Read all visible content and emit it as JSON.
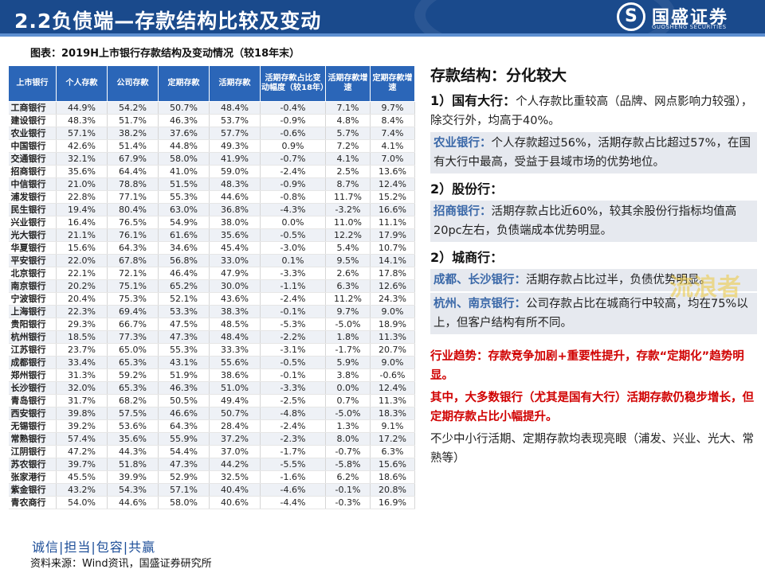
{
  "header": {
    "title": "2.2负债端—存款结构比较及变动",
    "logo_cn": "国盛证券",
    "logo_en": "GUOSHENG SECURITIES",
    "logo_mark": "S",
    "bg_color": "#1a4a8c"
  },
  "caption": "图表：2019H上市银行存款结构及变动情况（较18年末）",
  "table": {
    "columns": [
      "上市银行",
      "个人存款",
      "公司存款",
      "定期存款",
      "活期存款",
      "活期存款占比变动幅度（较18年）",
      "活期存款增速",
      "定期存款增速"
    ],
    "rows": [
      [
        "工商银行",
        "44.9%",
        "54.2%",
        "50.7%",
        "48.4%",
        "-0.4%",
        "7.1%",
        "9.7%"
      ],
      [
        "建设银行",
        "48.3%",
        "51.7%",
        "46.3%",
        "53.7%",
        "-0.9%",
        "4.8%",
        "8.4%"
      ],
      [
        "农业银行",
        "57.1%",
        "38.2%",
        "37.6%",
        "57.7%",
        "-0.6%",
        "5.7%",
        "7.4%"
      ],
      [
        "中国银行",
        "42.6%",
        "51.4%",
        "44.8%",
        "49.3%",
        "0.9%",
        "7.2%",
        "4.1%"
      ],
      [
        "交通银行",
        "32.1%",
        "67.9%",
        "58.0%",
        "41.9%",
        "-0.7%",
        "4.1%",
        "7.0%"
      ],
      [
        "招商银行",
        "35.6%",
        "64.4%",
        "41.0%",
        "59.0%",
        "-2.4%",
        "2.5%",
        "13.6%"
      ],
      [
        "中信银行",
        "21.0%",
        "78.8%",
        "51.5%",
        "48.3%",
        "-0.9%",
        "8.7%",
        "12.4%"
      ],
      [
        "浦发银行",
        "22.8%",
        "77.1%",
        "55.3%",
        "44.6%",
        "-0.8%",
        "11.7%",
        "15.2%"
      ],
      [
        "民生银行",
        "19.4%",
        "80.4%",
        "63.0%",
        "36.8%",
        "-4.3%",
        "-3.2%",
        "16.6%"
      ],
      [
        "兴业银行",
        "16.4%",
        "76.5%",
        "54.9%",
        "38.0%",
        "0.0%",
        "11.0%",
        "11.1%"
      ],
      [
        "光大银行",
        "21.1%",
        "76.1%",
        "61.6%",
        "35.6%",
        "-0.5%",
        "12.2%",
        "17.9%"
      ],
      [
        "华夏银行",
        "15.6%",
        "64.3%",
        "34.6%",
        "45.4%",
        "-3.0%",
        "5.4%",
        "10.7%"
      ],
      [
        "平安银行",
        "22.0%",
        "67.8%",
        "56.8%",
        "33.0%",
        "0.1%",
        "9.5%",
        "14.1%"
      ],
      [
        "北京银行",
        "22.1%",
        "72.1%",
        "46.4%",
        "47.9%",
        "-3.3%",
        "2.6%",
        "17.8%"
      ],
      [
        "南京银行",
        "20.2%",
        "75.1%",
        "65.2%",
        "30.0%",
        "-1.1%",
        "6.3%",
        "12.6%"
      ],
      [
        "宁波银行",
        "20.4%",
        "75.3%",
        "52.1%",
        "43.6%",
        "-2.4%",
        "11.2%",
        "24.3%"
      ],
      [
        "上海银行",
        "22.3%",
        "69.4%",
        "53.3%",
        "38.3%",
        "-0.1%",
        "9.7%",
        "9.0%"
      ],
      [
        "贵阳银行",
        "29.3%",
        "66.7%",
        "47.5%",
        "48.5%",
        "-5.3%",
        "-5.0%",
        "18.9%"
      ],
      [
        "杭州银行",
        "18.5%",
        "77.3%",
        "47.3%",
        "48.4%",
        "-2.2%",
        "1.8%",
        "11.3%"
      ],
      [
        "江苏银行",
        "23.7%",
        "65.0%",
        "55.3%",
        "33.3%",
        "-3.1%",
        "-1.7%",
        "20.7%"
      ],
      [
        "成都银行",
        "33.4%",
        "65.3%",
        "43.1%",
        "55.6%",
        "-0.5%",
        "5.9%",
        "9.0%"
      ],
      [
        "郑州银行",
        "31.3%",
        "59.2%",
        "51.9%",
        "38.6%",
        "-0.1%",
        "3.8%",
        "-0.6%"
      ],
      [
        "长沙银行",
        "32.0%",
        "65.3%",
        "46.3%",
        "51.0%",
        "-3.3%",
        "0.0%",
        "12.4%"
      ],
      [
        "青岛银行",
        "31.7%",
        "68.2%",
        "50.5%",
        "49.4%",
        "-2.5%",
        "0.7%",
        "11.3%"
      ],
      [
        "西安银行",
        "39.8%",
        "57.5%",
        "46.6%",
        "50.7%",
        "-4.8%",
        "-5.0%",
        "18.3%"
      ],
      [
        "无锡银行",
        "39.2%",
        "53.6%",
        "64.3%",
        "28.4%",
        "-2.4%",
        "1.3%",
        "9.1%"
      ],
      [
        "常熟银行",
        "57.4%",
        "35.6%",
        "55.9%",
        "37.2%",
        "-2.3%",
        "8.0%",
        "17.2%"
      ],
      [
        "江阴银行",
        "47.2%",
        "44.3%",
        "54.4%",
        "37.0%",
        "-1.7%",
        "-0.7%",
        "6.3%"
      ],
      [
        "苏农银行",
        "39.7%",
        "51.8%",
        "47.3%",
        "44.2%",
        "-5.5%",
        "-5.8%",
        "15.6%"
      ],
      [
        "张家港行",
        "45.5%",
        "39.9%",
        "52.9%",
        "32.5%",
        "-1.6%",
        "6.2%",
        "18.6%"
      ],
      [
        "紫金银行",
        "43.2%",
        "54.3%",
        "57.1%",
        "40.4%",
        "-4.6%",
        "-0.1%",
        "20.8%"
      ],
      [
        "青农商行",
        "54.0%",
        "44.6%",
        "58.0%",
        "40.6%",
        "-4.4%",
        "-0.3%",
        "16.9%"
      ]
    ]
  },
  "footer": {
    "slogan": "诚信|担当|包容|共赢",
    "source": "资料来源：Wind资讯，国盛证券研究所"
  },
  "panel": {
    "title": "存款结构：分化较大",
    "s1_head": "1）国有大行：",
    "s1_text": "个人存款比重较高（品牌、网点影响力较强），除交行外，均高于40%。",
    "s1b_hl": "农业银行：",
    "s1b_text": "个人存款超过56%，活期存款占比超过57%，在国有大行中最高，受益于县域市场的优势地位。",
    "s2_head": "2）股份行：",
    "s2b_hl": "招商银行：",
    "s2b_text": "活期存款占比近60%，较其余股份行指标均值高20pc左右，负债端成本优势明显。",
    "s3_head": "2）城商行：",
    "s3b_hl": "成都、长沙银行：",
    "s3b_text": "活期存款占比过半，负债优势明显。",
    "s3c_hl": "杭州、南京银行：",
    "s3c_text": "公司存款占比在城商行中较高，均在75%以上，但客户结构有所不同。",
    "red1": "行业趋势：存款竞争加剧+重要性提升，存款“定期化”趋势明显。",
    "red2": "其中，大多数银行（尤其是国有大行）活期存款仍稳步增长，但定期存款占比小幅提升。",
    "last": "不少中小行活期、定期存款均表现亮眼（浦发、兴业、光大、常熟等）"
  },
  "watermark": "流浪者"
}
